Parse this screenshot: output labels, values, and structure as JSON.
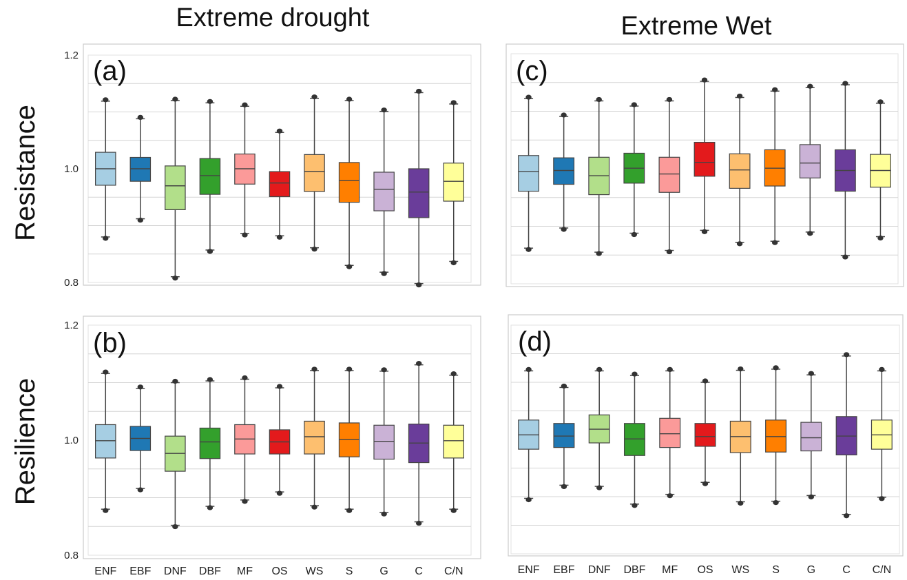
{
  "figure": {
    "column_titles": [
      "Extreme drought",
      "Extreme Wet"
    ],
    "row_labels": [
      "Resistance",
      "Resilience"
    ]
  },
  "colors": {
    "ENF": "#a6cee3",
    "EBF": "#1f78b4",
    "DNF": "#b2df8a",
    "DBF": "#33a02c",
    "MF": "#fb9a99",
    "OS": "#e31a1c",
    "WS": "#fdbf6f",
    "S": "#ff7f00",
    "G": "#cab2d6",
    "C": "#6a3d9a",
    "C/N": "#ffff99"
  },
  "chart_data": [
    {
      "type": "box",
      "panel_label": "(a)",
      "column": "Extreme drought",
      "row": "Resistance",
      "categories": [
        "ENF",
        "EBF",
        "DNF",
        "DBF",
        "MF",
        "OS",
        "WS",
        "S",
        "G",
        "C",
        "C/N"
      ],
      "ylim": [
        0.8,
        1.2
      ],
      "yticks": [
        0.8,
        1.0,
        1.2
      ],
      "ytick_labels": [
        "0.8",
        "1.0",
        "1.2"
      ],
      "show_yticks": true,
      "show_xticks": false,
      "grid": true,
      "boxes": [
        {
          "low": 0.88,
          "q1": 0.971,
          "median": 1.0,
          "q3": 1.029,
          "high": 1.119
        },
        {
          "low": 0.912,
          "q1": 0.978,
          "median": 1.0,
          "q3": 1.02,
          "high": 1.088
        },
        {
          "low": 0.81,
          "q1": 0.928,
          "median": 0.97,
          "q3": 1.005,
          "high": 1.12
        },
        {
          "low": 0.857,
          "q1": 0.955,
          "median": 0.988,
          "q3": 1.018,
          "high": 1.116
        },
        {
          "low": 0.886,
          "q1": 0.973,
          "median": 1.0,
          "q3": 1.026,
          "high": 1.11
        },
        {
          "low": 0.882,
          "q1": 0.951,
          "median": 0.975,
          "q3": 0.995,
          "high": 1.064
        },
        {
          "low": 0.861,
          "q1": 0.96,
          "median": 0.995,
          "q3": 1.025,
          "high": 1.124
        },
        {
          "low": 0.83,
          "q1": 0.941,
          "median": 0.979,
          "q3": 1.011,
          "high": 1.12
        },
        {
          "low": 0.818,
          "q1": 0.926,
          "median": 0.964,
          "q3": 0.994,
          "high": 1.101
        },
        {
          "low": 0.798,
          "q1": 0.914,
          "median": 0.959,
          "q3": 1.0,
          "high": 1.134
        },
        {
          "low": 0.837,
          "q1": 0.943,
          "median": 0.978,
          "q3": 1.01,
          "high": 1.114
        }
      ]
    },
    {
      "type": "box",
      "panel_label": "(c)",
      "column": "Extreme Wet",
      "row": "Resistance",
      "categories": [
        "ENF",
        "EBF",
        "DNF",
        "DBF",
        "MF",
        "OS",
        "WS",
        "S",
        "G",
        "C",
        "C/N"
      ],
      "ylim": [
        0.8,
        1.2
      ],
      "yticks": [
        0.8,
        1.0,
        1.2
      ],
      "ytick_labels": [
        "0.8",
        "1.0",
        "1.2"
      ],
      "show_yticks": false,
      "show_xticks": false,
      "grid": true,
      "boxes": [
        {
          "low": 0.862,
          "q1": 0.961,
          "median": 0.995,
          "q3": 1.023,
          "high": 1.122
        },
        {
          "low": 0.897,
          "q1": 0.973,
          "median": 0.997,
          "q3": 1.019,
          "high": 1.091
        },
        {
          "low": 0.855,
          "q1": 0.955,
          "median": 0.988,
          "q3": 1.02,
          "high": 1.118
        },
        {
          "low": 0.888,
          "q1": 0.975,
          "median": 1.001,
          "q3": 1.027,
          "high": 1.109
        },
        {
          "low": 0.858,
          "q1": 0.959,
          "median": 0.991,
          "q3": 1.02,
          "high": 1.118
        },
        {
          "low": 0.893,
          "q1": 0.987,
          "median": 1.011,
          "q3": 1.046,
          "high": 1.152
        },
        {
          "low": 0.872,
          "q1": 0.966,
          "median": 0.998,
          "q3": 1.026,
          "high": 1.124
        },
        {
          "low": 0.874,
          "q1": 0.97,
          "median": 1.001,
          "q3": 1.033,
          "high": 1.135
        },
        {
          "low": 0.89,
          "q1": 0.984,
          "median": 1.01,
          "q3": 1.042,
          "high": 1.141
        },
        {
          "low": 0.849,
          "q1": 0.961,
          "median": 0.997,
          "q3": 1.033,
          "high": 1.146
        },
        {
          "low": 0.882,
          "q1": 0.968,
          "median": 0.997,
          "q3": 1.025,
          "high": 1.114
        }
      ]
    },
    {
      "type": "box",
      "panel_label": "(b)",
      "column": "Extreme drought",
      "row": "Resilience",
      "categories": [
        "ENF",
        "EBF",
        "DNF",
        "DBF",
        "MF",
        "OS",
        "WS",
        "S",
        "G",
        "C",
        "C/N"
      ],
      "ylim": [
        0.8,
        1.2
      ],
      "yticks": [
        0.8,
        1.0,
        1.2
      ],
      "ytick_labels": [
        "0.8",
        "1.0",
        "1.2"
      ],
      "show_yticks": true,
      "show_xticks": true,
      "grid": true,
      "boxes": [
        {
          "low": 0.88,
          "q1": 0.969,
          "median": 0.999,
          "q3": 1.027,
          "high": 1.116
        },
        {
          "low": 0.916,
          "q1": 0.982,
          "median": 1.003,
          "q3": 1.024,
          "high": 1.09
        },
        {
          "low": 0.852,
          "q1": 0.946,
          "median": 0.977,
          "q3": 1.007,
          "high": 1.1
        },
        {
          "low": 0.885,
          "q1": 0.968,
          "median": 0.997,
          "q3": 1.021,
          "high": 1.103
        },
        {
          "low": 0.896,
          "q1": 0.976,
          "median": 1.002,
          "q3": 1.027,
          "high": 1.106
        },
        {
          "low": 0.91,
          "q1": 0.976,
          "median": 0.997,
          "q3": 1.018,
          "high": 1.091
        },
        {
          "low": 0.886,
          "q1": 0.976,
          "median": 1.006,
          "q3": 1.033,
          "high": 1.121
        },
        {
          "low": 0.88,
          "q1": 0.971,
          "median": 1.001,
          "q3": 1.03,
          "high": 1.121
        },
        {
          "low": 0.874,
          "q1": 0.967,
          "median": 0.998,
          "q3": 1.026,
          "high": 1.12
        },
        {
          "low": 0.858,
          "q1": 0.961,
          "median": 0.995,
          "q3": 1.028,
          "high": 1.131
        },
        {
          "low": 0.88,
          "q1": 0.969,
          "median": 0.999,
          "q3": 1.026,
          "high": 1.113
        }
      ]
    },
    {
      "type": "box",
      "panel_label": "(d)",
      "column": "Extreme Wet",
      "row": "Resilience",
      "categories": [
        "ENF",
        "EBF",
        "DNF",
        "DBF",
        "MF",
        "OS",
        "WS",
        "S",
        "G",
        "C",
        "C/N"
      ],
      "ylim": [
        0.8,
        1.2
      ],
      "yticks": [
        0.8,
        1.0,
        1.2
      ],
      "ytick_labels": [
        "0.8",
        "1.0",
        "1.2"
      ],
      "show_yticks": false,
      "show_xticks": true,
      "grid": true,
      "boxes": [
        {
          "low": 0.897,
          "q1": 0.983,
          "median": 1.008,
          "q3": 1.034,
          "high": 1.12
        },
        {
          "low": 0.92,
          "q1": 0.986,
          "median": 1.006,
          "q3": 1.028,
          "high": 1.091
        },
        {
          "low": 0.918,
          "q1": 0.994,
          "median": 1.018,
          "q3": 1.043,
          "high": 1.12
        },
        {
          "low": 0.887,
          "q1": 0.972,
          "median": 1.001,
          "q3": 1.028,
          "high": 1.112
        },
        {
          "low": 0.904,
          "q1": 0.986,
          "median": 1.01,
          "q3": 1.037,
          "high": 1.12
        },
        {
          "low": 0.925,
          "q1": 0.988,
          "median": 1.005,
          "q3": 1.028,
          "high": 1.1
        },
        {
          "low": 0.891,
          "q1": 0.977,
          "median": 1.005,
          "q3": 1.032,
          "high": 1.121
        },
        {
          "low": 0.892,
          "q1": 0.978,
          "median": 1.005,
          "q3": 1.034,
          "high": 1.123
        },
        {
          "low": 0.902,
          "q1": 0.98,
          "median": 1.003,
          "q3": 1.03,
          "high": 1.113
        },
        {
          "low": 0.869,
          "q1": 0.973,
          "median": 1.006,
          "q3": 1.04,
          "high": 1.146
        },
        {
          "low": 0.899,
          "q1": 0.983,
          "median": 1.008,
          "q3": 1.034,
          "high": 1.12
        }
      ]
    }
  ]
}
